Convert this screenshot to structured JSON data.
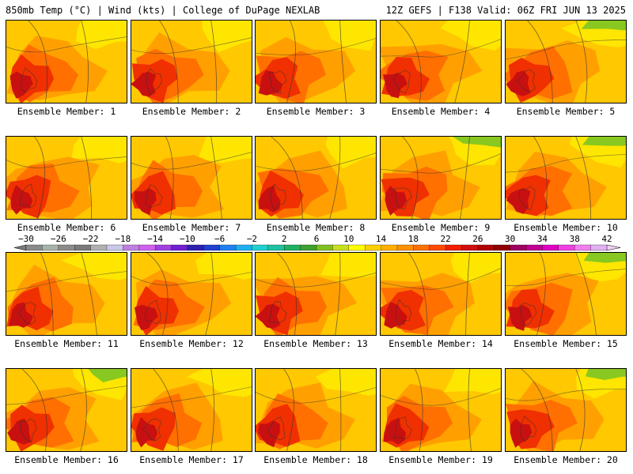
{
  "header": {
    "left": "850mb Temp (°C) | Wind (kts) | College of DuPage NEXLAB",
    "right": "12Z GEFS | F138 Valid: 06Z FRI JUN 13 2025"
  },
  "panels": [
    {
      "label": "Ensemble Member: 1"
    },
    {
      "label": "Ensemble Member: 2"
    },
    {
      "label": "Ensemble Member: 3"
    },
    {
      "label": "Ensemble Member: 4"
    },
    {
      "label": "Ensemble Member: 5"
    },
    {
      "label": "Ensemble Member: 6"
    },
    {
      "label": "Ensemble Member: 7"
    },
    {
      "label": "Ensemble Member: 8"
    },
    {
      "label": "Ensemble Member: 9"
    },
    {
      "label": "Ensemble Member: 10"
    },
    {
      "label": "Ensemble Member: 11"
    },
    {
      "label": "Ensemble Member: 12"
    },
    {
      "label": "Ensemble Member: 13"
    },
    {
      "label": "Ensemble Member: 14"
    },
    {
      "label": "Ensemble Member: 15"
    },
    {
      "label": "Ensemble Member: 16"
    },
    {
      "label": "Ensemble Member: 17"
    },
    {
      "label": "Ensemble Member: 18"
    },
    {
      "label": "Ensemble Member: 19"
    },
    {
      "label": "Ensemble Member: 20"
    }
  ],
  "colorbar": {
    "labels": [
      "−30",
      "−26",
      "−22",
      "−18",
      "−14",
      "−10",
      "−6",
      "−2",
      "2",
      "6",
      "10",
      "14",
      "18",
      "22",
      "26",
      "30",
      "34",
      "38",
      "42"
    ],
    "colors": [
      "#8a8a8a",
      "#a8b3a8",
      "#8c8c8c",
      "#7a7a7a",
      "#b0b0b0",
      "#c8c8e8",
      "#c080e0",
      "#d060f0",
      "#a040e0",
      "#7020d0",
      "#3020b0",
      "#2040d0",
      "#2080f0",
      "#20b0f0",
      "#20d0d0",
      "#20c0a0",
      "#20b060",
      "#40a030",
      "#80c020",
      "#c8e020",
      "#ffff00",
      "#ffd000",
      "#ffb000",
      "#ff9000",
      "#ff7000",
      "#ff4a00",
      "#f02000",
      "#d01010",
      "#b00000",
      "#900000",
      "#a00060",
      "#c00090",
      "#e000c0",
      "#f040e0",
      "#f080f0",
      "#e0b0f0"
    ]
  }
}
